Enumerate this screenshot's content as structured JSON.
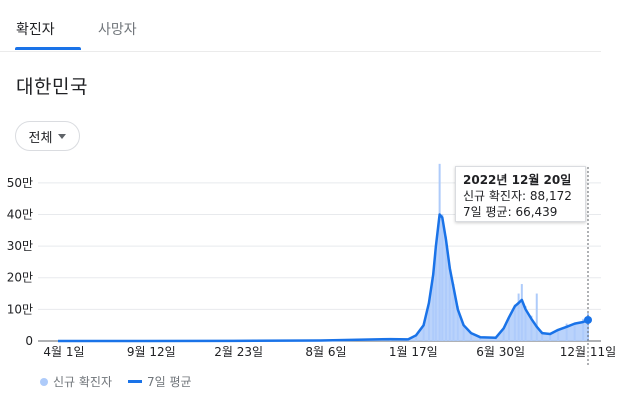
{
  "tabs": {
    "confirmed": "확진자",
    "deaths": "사망자"
  },
  "region": "대한민국",
  "filter": {
    "label": "전체"
  },
  "tooltip": {
    "date": "2022년 12월 20일",
    "new_cases_label": "신규 확진자",
    "new_cases_value": "88,172",
    "avg_label": "7일 평균",
    "avg_value": "66,439"
  },
  "legend": {
    "bars": "신규 확진자",
    "line": "7일 평균"
  },
  "colors": {
    "bars": "#aecbfa",
    "line": "#1a73e8",
    "grid": "#e8eaed"
  },
  "chart_data": {
    "type": "line",
    "x_tick_labels": [
      "4월 1일",
      "9월 12일",
      "2월 23일",
      "8월 6일",
      "1월 17일",
      "6월 30일",
      "12월 11일"
    ],
    "y_tick_labels": [
      "0",
      "10만",
      "20만",
      "30만",
      "40만",
      "50만"
    ],
    "ylim": [
      0,
      550000
    ],
    "grid": true,
    "series": [
      {
        "name": "신규 확진자",
        "kind": "bar",
        "x": [
          "2020-04-01",
          "2020-09-12",
          "2021-02-23",
          "2021-08-06",
          "2021-12-15",
          "2022-01-17",
          "2022-02-01",
          "2022-02-15",
          "2022-02-25",
          "2022-03-05",
          "2022-03-10",
          "2022-03-17",
          "2022-03-22",
          "2022-03-29",
          "2022-04-05",
          "2022-04-12",
          "2022-04-20",
          "2022-05-01",
          "2022-05-15",
          "2022-06-01",
          "2022-06-30",
          "2022-07-15",
          "2022-07-25",
          "2022-08-05",
          "2022-08-12",
          "2022-08-18",
          "2022-08-25",
          "2022-09-05",
          "2022-09-15",
          "2022-09-25",
          "2022-10-10",
          "2022-10-25",
          "2022-11-10",
          "2022-11-25",
          "2022-12-11",
          "2022-12-20"
        ],
        "values": [
          100,
          200,
          400,
          1800,
          7000,
          4000,
          20000,
          55000,
          110000,
          200000,
          280000,
          560000,
          400000,
          330000,
          230000,
          180000,
          110000,
          50000,
          25000,
          12000,
          10000,
          40000,
          70000,
          115000,
          150000,
          180000,
          110000,
          80000,
          150000,
          30000,
          25000,
          35000,
          55000,
          55000,
          70000,
          88172
        ]
      },
      {
        "name": "7일 평균",
        "kind": "line",
        "x": [
          "2020-04-01",
          "2020-09-12",
          "2021-02-23",
          "2021-08-06",
          "2021-12-15",
          "2022-01-17",
          "2022-02-01",
          "2022-02-15",
          "2022-02-25",
          "2022-03-05",
          "2022-03-10",
          "2022-03-17",
          "2022-03-22",
          "2022-03-29",
          "2022-04-05",
          "2022-04-12",
          "2022-04-20",
          "2022-05-01",
          "2022-05-15",
          "2022-06-01",
          "2022-06-30",
          "2022-07-15",
          "2022-07-25",
          "2022-08-05",
          "2022-08-12",
          "2022-08-18",
          "2022-08-25",
          "2022-09-05",
          "2022-09-15",
          "2022-09-25",
          "2022-10-10",
          "2022-10-25",
          "2022-11-10",
          "2022-11-25",
          "2022-12-11",
          "2022-12-20"
        ],
        "values": [
          100,
          150,
          400,
          1700,
          6000,
          5000,
          18000,
          50000,
          120000,
          210000,
          300000,
          400000,
          390000,
          320000,
          230000,
          170000,
          100000,
          50000,
          25000,
          12000,
          10000,
          40000,
          75000,
          110000,
          120000,
          130000,
          100000,
          70000,
          45000,
          25000,
          22000,
          35000,
          45000,
          55000,
          60000,
          66439
        ]
      }
    ]
  }
}
